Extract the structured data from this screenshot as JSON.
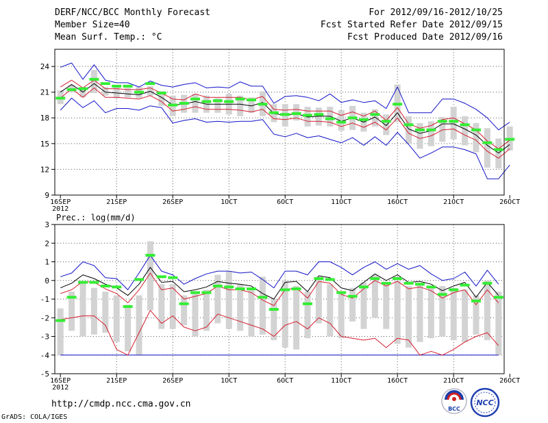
{
  "header": {
    "title": "DERF/NCC/BCC Monthly Forecast",
    "member_size": "Member Size=40",
    "variable1": "Mean Surf. Temp.: °C",
    "period": "For 2012/09/16-2012/10/25",
    "refer_date": "Fcst Started Refer Date 2012/09/15",
    "produced_date": "Fcst Produced Date 2012/09/16"
  },
  "footer": {
    "url": "http://cmdp.ncc.cma.gov.cn",
    "credit": "GrADS: COLA/IGES"
  },
  "logos": {
    "bcc_label": "BCC",
    "ncc_label": "NCC"
  },
  "colors": {
    "green": "#33ee33",
    "gray": "#d3d3d3",
    "red": "#d41c2c",
    "blue": "#1010c8",
    "black": "#000000"
  },
  "chart_data": [
    {
      "type": "ensemble",
      "title": "Mean Surf. Temp.: °C",
      "ylabel": "°C",
      "ylim": [
        9,
        26
      ],
      "yticks": [
        9,
        12,
        15,
        18,
        21,
        24
      ],
      "xticks": [
        {
          "day": 0,
          "label": "16SEP",
          "sub": "2012"
        },
        {
          "day": 5,
          "label": "21SEP"
        },
        {
          "day": 10,
          "label": "26SEP"
        },
        {
          "day": 15,
          "label": "1OCT"
        },
        {
          "day": 20,
          "label": "6OCT"
        },
        {
          "day": 25,
          "label": "11OCT"
        },
        {
          "day": 30,
          "label": "16OCT"
        },
        {
          "day": 35,
          "label": "21OCT"
        },
        {
          "day": 40,
          "label": "26OCT"
        }
      ],
      "n_days": 40,
      "obs": [
        20.3,
        21.3,
        21.4,
        22.5,
        22.0,
        21.7,
        21.7,
        21.0,
        22.0,
        20.9,
        19.5,
        19.7,
        20.2,
        19.9,
        20.0,
        19.9,
        20.2,
        20.1,
        19.6,
        18.6,
        18.4,
        18.5,
        18.3,
        18.4,
        17.9,
        17.5,
        18.0,
        17.8,
        18.4,
        17.6,
        19.6,
        17.2,
        16.6,
        16.6,
        17.6,
        17.6,
        17.2,
        16.6,
        15.1,
        14.3,
        15.5
      ],
      "mean": [
        21.0,
        21.9,
        21.0,
        22.0,
        21.0,
        20.9,
        20.8,
        20.7,
        21.1,
        20.4,
        19.5,
        19.6,
        19.9,
        19.6,
        19.6,
        19.6,
        19.6,
        19.4,
        19.8,
        18.5,
        18.3,
        18.5,
        18.1,
        18.2,
        18.2,
        17.6,
        18.0,
        17.5,
        18.1,
        17.1,
        18.6,
        16.7,
        16.2,
        16.5,
        17.3,
        17.3,
        16.7,
        16.0,
        14.8,
        13.9,
        14.9
      ],
      "red_upper": [
        21.6,
        22.4,
        21.5,
        22.4,
        21.4,
        21.4,
        21.3,
        21.3,
        21.5,
        20.9,
        20.2,
        20.1,
        20.8,
        20.4,
        20.4,
        20.4,
        20.4,
        20.1,
        20.5,
        19.0,
        18.9,
        19.0,
        18.8,
        18.8,
        18.8,
        18.3,
        18.7,
        18.2,
        18.8,
        17.7,
        19.2,
        17.3,
        16.8,
        17.1,
        17.8,
        18.0,
        17.3,
        16.6,
        15.3,
        14.4,
        15.4
      ],
      "red_lower": [
        20.3,
        21.4,
        20.4,
        21.5,
        20.4,
        20.4,
        20.3,
        20.2,
        20.6,
        19.9,
        18.8,
        19.0,
        19.3,
        19.0,
        19.0,
        19.0,
        18.9,
        18.7,
        19.0,
        17.9,
        17.8,
        18.0,
        17.6,
        17.6,
        17.5,
        17.0,
        17.4,
        16.9,
        17.5,
        16.6,
        18.0,
        16.2,
        15.6,
        15.9,
        16.6,
        16.7,
        16.0,
        15.4,
        14.1,
        13.3,
        14.4
      ],
      "blue_upper": [
        23.9,
        24.4,
        22.5,
        24.2,
        22.4,
        22.1,
        22.1,
        21.6,
        22.3,
        21.8,
        21.6,
        21.9,
        22.1,
        21.5,
        21.6,
        21.5,
        22.2,
        21.7,
        21.7,
        19.7,
        20.5,
        20.6,
        20.4,
        20.0,
        20.8,
        19.8,
        20.1,
        19.8,
        20.0,
        19.1,
        21.6,
        18.6,
        18.6,
        18.6,
        20.2,
        20.2,
        19.7,
        19.0,
        18.0,
        16.6,
        17.5
      ],
      "blue_lower": [
        18.9,
        20.3,
        19.2,
        20.0,
        18.6,
        19.1,
        19.1,
        18.9,
        19.4,
        19.2,
        17.4,
        17.7,
        17.9,
        17.5,
        17.6,
        17.5,
        17.6,
        17.6,
        17.8,
        16.1,
        15.8,
        16.2,
        15.7,
        15.9,
        15.5,
        15.1,
        15.7,
        14.8,
        15.8,
        14.8,
        16.3,
        14.9,
        13.3,
        13.9,
        14.6,
        14.6,
        14.3,
        13.8,
        10.9,
        10.9,
        12.5
      ],
      "box_top": [
        21.2,
        21.8,
        21.6,
        23.6,
        21.6,
        21.8,
        21.5,
        21.6,
        21.7,
        21.1,
        20.6,
        20.7,
        20.8,
        20.6,
        20.3,
        20.8,
        20.6,
        20.4,
        21.1,
        19.6,
        19.6,
        19.6,
        19.3,
        19.2,
        19.3,
        18.9,
        19.4,
        18.6,
        19.0,
        18.4,
        21.9,
        18.2,
        17.4,
        17.6,
        18.1,
        19.3,
        18.2,
        17.4,
        16.8,
        15.6,
        17.0
      ],
      "box_bottom": [
        19.6,
        21.0,
        20.4,
        20.9,
        20.6,
        20.3,
        20.4,
        20.3,
        20.6,
        19.4,
        18.2,
        18.6,
        18.6,
        18.6,
        18.6,
        18.4,
        18.2,
        18.6,
        18.2,
        17.5,
        17.0,
        17.7,
        17.0,
        17.1,
        17.0,
        16.5,
        16.6,
        16.4,
        17.0,
        16.0,
        17.5,
        15.0,
        14.4,
        14.7,
        15.2,
        15.5,
        14.8,
        14.0,
        12.2,
        12.1,
        14.2
      ]
    },
    {
      "type": "ensemble",
      "title": "Prec.: log(mm/d)",
      "ylabel": "log(mm/d)",
      "ylim": [
        -5,
        3
      ],
      "yticks": [
        -5,
        -4,
        -3,
        -2,
        -1,
        0,
        1,
        2,
        3
      ],
      "xticks": [
        {
          "day": 0,
          "label": "16SEP",
          "sub": "2012"
        },
        {
          "day": 5,
          "label": "21SEP"
        },
        {
          "day": 10,
          "label": "26SEP"
        },
        {
          "day": 15,
          "label": "1OCT"
        },
        {
          "day": 20,
          "label": "6OCT"
        },
        {
          "day": 25,
          "label": "11OCT"
        },
        {
          "day": 30,
          "label": "16OCT"
        },
        {
          "day": 35,
          "label": "21OCT"
        },
        {
          "day": 40,
          "label": "26OCT"
        }
      ],
      "n_days": 40,
      "obs": [
        -2.15,
        -0.9,
        -0.1,
        -0.1,
        -0.3,
        -0.35,
        -1.4,
        0.05,
        1.35,
        0.2,
        0.15,
        -1.25,
        -0.65,
        -0.65,
        -0.3,
        -0.35,
        -0.45,
        -0.45,
        -0.9,
        -1.55,
        -0.5,
        -0.45,
        -1.25,
        0.1,
        0.05,
        -0.65,
        -0.85,
        -0.35,
        0.1,
        -0.15,
        0.1,
        -0.15,
        -0.2,
        -0.35,
        -0.75,
        -0.5,
        -0.25,
        -1.1,
        -0.15,
        -0.9
      ],
      "mean": [
        -0.4,
        -0.15,
        0.3,
        0.1,
        -0.2,
        -0.4,
        -0.8,
        -0.2,
        0.7,
        -0.1,
        -0.05,
        -0.6,
        -0.5,
        -0.35,
        -0.05,
        -0.15,
        -0.2,
        -0.3,
        -0.7,
        -1.0,
        -0.1,
        -0.05,
        -0.6,
        0.25,
        0.15,
        -0.4,
        -0.55,
        -0.1,
        0.35,
        0.0,
        0.3,
        -0.1,
        -0.05,
        -0.2,
        -0.55,
        -0.3,
        -0.1,
        -0.9,
        -0.1,
        -0.8
      ],
      "red_upper": [
        -0.7,
        -0.5,
        -0.05,
        -0.1,
        -0.45,
        -0.7,
        -1.2,
        -0.5,
        0.4,
        -0.5,
        -0.4,
        -1.0,
        -0.85,
        -0.7,
        -0.3,
        -0.5,
        -0.5,
        -0.65,
        -1.05,
        -1.35,
        -0.5,
        -0.4,
        -0.95,
        -0.05,
        -0.15,
        -0.75,
        -0.95,
        -0.45,
        0.0,
        -0.3,
        -0.05,
        -0.45,
        -0.35,
        -0.55,
        -0.95,
        -0.65,
        -0.5,
        -1.3,
        -0.5,
        -1.2
      ],
      "red_lower": [
        -2.1,
        -2.0,
        -1.9,
        -1.9,
        -2.4,
        -3.7,
        -4.0,
        -2.8,
        -1.6,
        -2.3,
        -1.9,
        -2.5,
        -2.7,
        -2.5,
        -1.8,
        -2.0,
        -2.2,
        -2.4,
        -2.6,
        -3.0,
        -2.4,
        -2.2,
        -2.6,
        -2.0,
        -2.3,
        -3.0,
        -3.1,
        -3.2,
        -3.1,
        -3.6,
        -3.1,
        -3.2,
        -4.0,
        -3.8,
        -4.0,
        -3.7,
        -3.3,
        -3.0,
        -2.8,
        -3.5
      ],
      "blue_upper": [
        0.2,
        0.4,
        1.0,
        0.8,
        0.15,
        0.1,
        -0.5,
        0.4,
        1.35,
        0.5,
        0.3,
        -0.2,
        0.1,
        0.35,
        0.5,
        0.5,
        0.4,
        0.45,
        0.05,
        -0.4,
        0.5,
        0.5,
        0.3,
        1.0,
        1.0,
        0.7,
        0.3,
        0.7,
        1.0,
        0.6,
        0.9,
        0.6,
        0.8,
        0.35,
        0.0,
        0.1,
        0.45,
        -0.3,
        0.55,
        -0.2
      ],
      "blue_lower": [
        -4.0,
        -4.0,
        -4.0,
        -4.0,
        -4.0,
        -4.0,
        -4.0,
        -4.0,
        -4.0,
        -4.0,
        -4.0,
        -4.0,
        -4.0,
        -4.0,
        -4.0,
        -4.0,
        -4.0,
        -4.0,
        -4.0,
        -4.0,
        -4.0,
        -4.0,
        -4.0,
        -4.0,
        -4.0,
        -4.0,
        -4.0,
        -4.0,
        -4.0,
        -4.0,
        -4.0,
        -4.0,
        -4.0,
        -4.0,
        -4.0,
        -4.0,
        -4.0,
        -4.0,
        -4.0,
        -4.0
      ],
      "box_top": [
        -1.5,
        -0.6,
        -0.1,
        -0.4,
        -0.6,
        -0.8,
        -1.3,
        -0.8,
        2.1,
        -0.2,
        -0.2,
        -0.8,
        -0.7,
        -0.5,
        0.3,
        0.5,
        -0.2,
        -0.4,
        0.2,
        -1.0,
        0.0,
        -0.3,
        -0.6,
        0.2,
        -0.2,
        -0.6,
        -0.4,
        -0.1,
        0.3,
        -0.2,
        0.0,
        -0.3,
        -0.2,
        -0.4,
        -0.3,
        -0.4,
        -0.5,
        -0.8,
        0.0,
        -0.6
      ],
      "box_bottom": [
        -4.0,
        -2.7,
        -3.0,
        -2.9,
        -2.8,
        -3.3,
        -3.8,
        -4.0,
        -1.6,
        -2.6,
        -2.6,
        -2.4,
        -3.0,
        -2.7,
        -2.3,
        -2.6,
        -2.7,
        -3.0,
        -2.9,
        -3.2,
        -3.6,
        -3.7,
        -3.1,
        -2.3,
        -3.0,
        -3.1,
        -2.2,
        -2.6,
        -2.0,
        -2.6,
        -3.4,
        -3.6,
        -3.3,
        -3.1,
        -3.0,
        -3.2,
        -3.3,
        -2.9,
        -3.2,
        -4.0
      ]
    }
  ]
}
